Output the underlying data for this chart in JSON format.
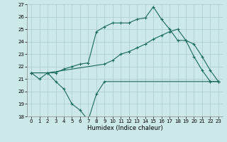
{
  "xlabel": "Humidex (Indice chaleur)",
  "bg_color": "#cce8e8",
  "grid_color": "#aacccc",
  "line_color": "#1a6b5a",
  "xlim": [
    -0.5,
    23.5
  ],
  "ylim": [
    18,
    27
  ],
  "yticks": [
    18,
    19,
    20,
    21,
    22,
    23,
    24,
    25,
    26,
    27
  ],
  "xticks": [
    0,
    1,
    2,
    3,
    4,
    5,
    6,
    7,
    8,
    9,
    10,
    11,
    12,
    13,
    14,
    15,
    16,
    17,
    18,
    19,
    20,
    21,
    22,
    23
  ],
  "line1_x": [
    0,
    2,
    3,
    4,
    5,
    6,
    7,
    8,
    9,
    22,
    23
  ],
  "line1_y": [
    21.5,
    21.5,
    20.8,
    20.2,
    19.0,
    18.5,
    17.7,
    19.8,
    20.8,
    20.8,
    20.8
  ],
  "line2_x": [
    0,
    1,
    2,
    9,
    10,
    11,
    12,
    13,
    14,
    15,
    16,
    17,
    18,
    19,
    20,
    21,
    22,
    23
  ],
  "line2_y": [
    21.5,
    21.0,
    21.5,
    22.2,
    22.5,
    23.0,
    23.2,
    23.5,
    23.8,
    24.2,
    24.5,
    24.8,
    25.0,
    24.1,
    23.8,
    22.8,
    21.7,
    20.8
  ],
  "line3_x": [
    0,
    2,
    3,
    4,
    5,
    6,
    7,
    8,
    9,
    10,
    11,
    12,
    13,
    14,
    15,
    16,
    17,
    18,
    19,
    20,
    21,
    22,
    23
  ],
  "line3_y": [
    21.5,
    21.5,
    21.5,
    21.8,
    22.0,
    22.2,
    22.3,
    24.8,
    25.2,
    25.5,
    25.5,
    25.5,
    25.8,
    25.9,
    26.8,
    25.8,
    25.0,
    24.1,
    24.1,
    22.8,
    21.7,
    20.8,
    20.8
  ]
}
